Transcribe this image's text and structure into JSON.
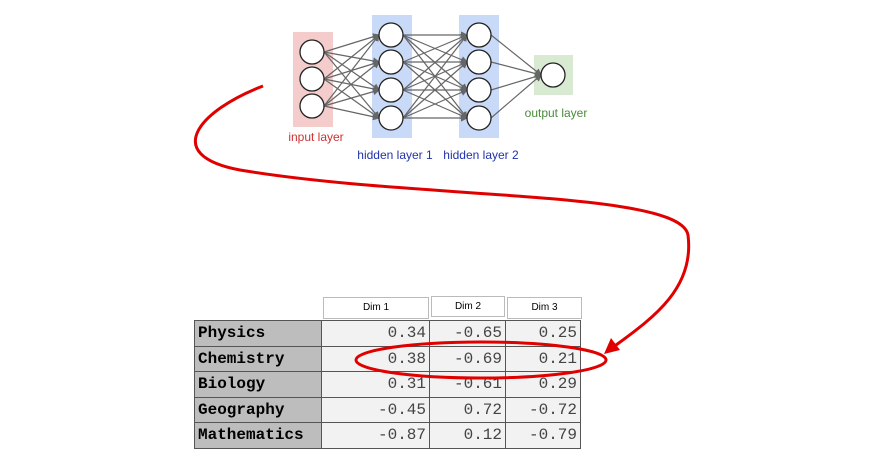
{
  "network": {
    "layers": [
      {
        "label": "input layer",
        "nodes": 3,
        "color": "#f4cccc",
        "label_color": "#cc3333"
      },
      {
        "label": "hidden layer 1",
        "nodes": 4,
        "color": "#c9daf8",
        "label_color": "#2233aa"
      },
      {
        "label": "hidden layer 2",
        "nodes": 4,
        "color": "#c9daf8",
        "label_color": "#2233aa"
      },
      {
        "label": "output layer",
        "nodes": 1,
        "color": "#d9ead3",
        "label_color": "#4a8a3a"
      }
    ]
  },
  "table": {
    "columns": [
      "Dim 1",
      "Dim 2",
      "Dim 3"
    ],
    "rows": [
      {
        "label": "Physics",
        "values": [
          "0.34",
          "-0.65",
          "0.25"
        ]
      },
      {
        "label": "Chemistry",
        "values": [
          "0.38",
          "-0.69",
          "0.21"
        ]
      },
      {
        "label": "Biology",
        "values": [
          "0.31",
          "-0.61",
          "0.29"
        ]
      },
      {
        "label": "Geography",
        "values": [
          "-0.45",
          "0.72",
          "-0.72"
        ]
      },
      {
        "label": "Mathematics",
        "values": [
          "-0.87",
          "0.12",
          "-0.79"
        ]
      }
    ],
    "highlighted_row": "Chemistry"
  },
  "annotation_color": "#e00000"
}
